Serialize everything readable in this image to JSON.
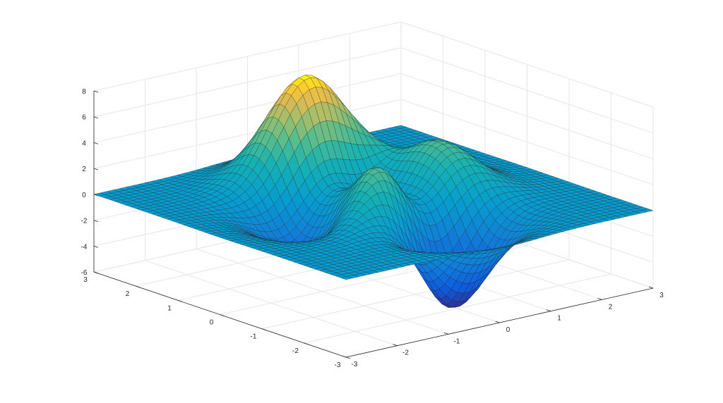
{
  "chart_data": {
    "type": "surface",
    "function": "peaks",
    "z_formula": "3*(1-x)^2*exp(-x^2-(y+1)^2) - 10*(x/5-x^3-y^5)*exp(-x^2-y^2) - 1/3*exp(-(x+1)^2-y^2)",
    "x_range": [
      -3,
      3
    ],
    "y_range": [
      -3,
      3
    ],
    "z_range": [
      -6,
      8
    ],
    "grid_size": 49,
    "x_ticks": [
      "-3",
      "-2",
      "-1",
      "0",
      "1",
      "2",
      "3"
    ],
    "y_ticks": [
      "-3",
      "-2",
      "-1",
      "0",
      "1",
      "2",
      "3"
    ],
    "z_ticks": [
      "-6",
      "-4",
      "-2",
      "0",
      "2",
      "4",
      "6",
      "8"
    ],
    "colormap": "parula",
    "grid": true,
    "title": "",
    "xlabel": "",
    "ylabel": "",
    "zlabel": ""
  },
  "colors": {
    "grid": "#e6e6e6",
    "axis": "#262626",
    "edge": "#1a1a1a",
    "background": "#ffffff"
  }
}
